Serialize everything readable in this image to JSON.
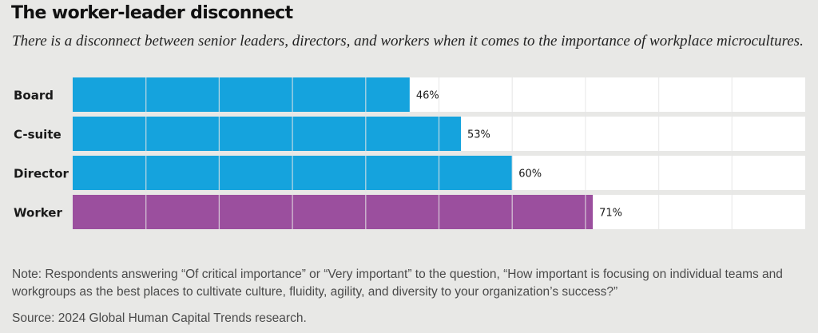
{
  "header": {
    "title": "The worker-leader disconnect",
    "subtitle": "There is a disconnect between senior leaders, directors, and workers when it comes to the importance of workplace microcultures."
  },
  "footer": {
    "note": "Note: Respondents answering “Of critical importance” or “Very important” to the question, “How important is focusing on individual teams and workgroups as the best places to cultivate culture, fluidity, agility, and diversity to your organization’s success?”",
    "source": "Source: 2024 Global Human Capital Trends research."
  },
  "chart_data": {
    "type": "bar",
    "orientation": "horizontal",
    "categories": [
      "Board",
      "C-suite",
      "Director",
      "Worker"
    ],
    "values": [
      46,
      53,
      60,
      71
    ],
    "value_labels": [
      "46%",
      "53%",
      "60%",
      "71%"
    ],
    "colors": [
      "#15a3dd",
      "#15a3dd",
      "#15a3dd",
      "#9b4f9e"
    ],
    "xlim": [
      0,
      100
    ],
    "grid": true,
    "track_color": "#ffffff",
    "grid_color": "#e6e6e6"
  }
}
